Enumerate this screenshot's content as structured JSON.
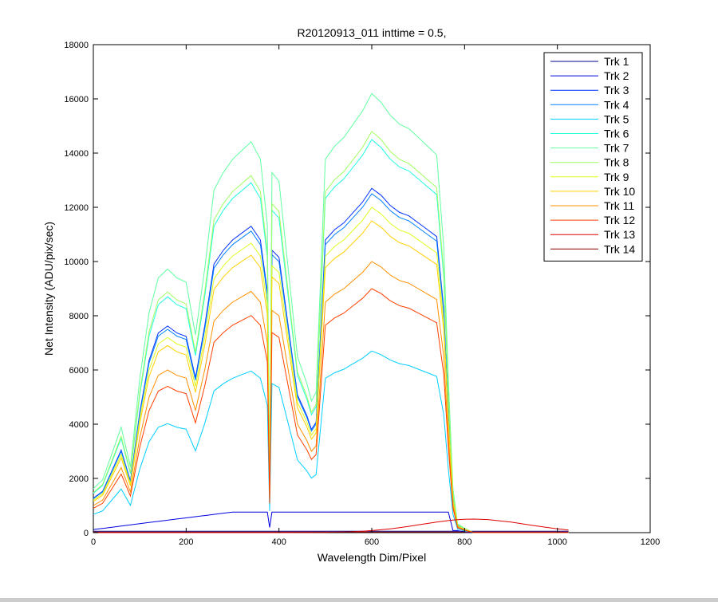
{
  "chart_data": {
    "type": "line",
    "title": "R20120913_011 inttime = 0.5,",
    "xlabel": "Wavelength Dim/Pixel",
    "ylabel": "Net Intensity (ADU/pix/sec)",
    "xlim": [
      0,
      1200
    ],
    "ylim": [
      0,
      18000
    ],
    "xticks": [
      0,
      200,
      400,
      600,
      800,
      1000,
      1200
    ],
    "yticks": [
      0,
      2000,
      4000,
      6000,
      8000,
      10000,
      12000,
      14000,
      16000,
      18000
    ],
    "grid": false,
    "legend_position": "top-right",
    "peak_x": [
      0,
      20,
      40,
      60,
      80,
      100,
      120,
      140,
      160,
      180,
      200,
      220,
      240,
      260,
      280,
      300,
      320,
      340,
      360,
      375,
      380,
      385,
      400,
      420,
      440,
      460,
      470,
      480,
      500,
      520,
      540,
      560,
      580,
      600,
      620,
      640,
      660,
      680,
      700,
      720,
      740,
      755,
      765,
      775,
      785,
      800,
      820,
      850,
      900,
      950,
      1000,
      1024
    ],
    "series": [
      {
        "name": "Trk 1",
        "color": "#00008f",
        "peak": 0,
        "shape": "const",
        "level": 50
      },
      {
        "name": "Trk 2",
        "color": "#0000df",
        "peak": 760,
        "shape": "low",
        "level": 0
      },
      {
        "name": "Trk 3",
        "color": "#0030ff",
        "peak": 12700,
        "shape": "spectrum",
        "level": 0
      },
      {
        "name": "Trk 4",
        "color": "#0080ff",
        "peak": 12500,
        "shape": "spectrum",
        "level": 0
      },
      {
        "name": "Trk 5",
        "color": "#00cfff",
        "peak": 6700,
        "shape": "spectrum",
        "level": 0
      },
      {
        "name": "Trk 6",
        "color": "#20ffdf",
        "peak": 14500,
        "shape": "spectrum",
        "level": 0
      },
      {
        "name": "Trk 7",
        "color": "#60ffa0",
        "peak": 16200,
        "shape": "spectrum",
        "level": 0
      },
      {
        "name": "Trk 8",
        "color": "#a0ff60",
        "peak": 14800,
        "shape": "spectrum",
        "level": 0
      },
      {
        "name": "Trk 9",
        "color": "#dfff20",
        "peak": 12000,
        "shape": "spectrum",
        "level": 0
      },
      {
        "name": "Trk 10",
        "color": "#ffd000",
        "peak": 11500,
        "shape": "spectrum",
        "level": 0
      },
      {
        "name": "Trk 11",
        "color": "#ff9000",
        "peak": 10000,
        "shape": "spectrum",
        "level": 0
      },
      {
        "name": "Trk 12",
        "color": "#ff4000",
        "peak": 9000,
        "shape": "spectrum",
        "level": 0
      },
      {
        "name": "Trk 13",
        "color": "#df0000",
        "peak": 500,
        "shape": "bump",
        "level": 0
      },
      {
        "name": "Trk 14",
        "color": "#8f0000",
        "peak": 0,
        "shape": "const",
        "level": 20
      }
    ],
    "profile": [
      0.1,
      0.12,
      0.18,
      0.24,
      0.15,
      0.35,
      0.5,
      0.58,
      0.6,
      0.58,
      0.57,
      0.45,
      0.6,
      0.78,
      0.82,
      0.85,
      0.87,
      0.89,
      0.85,
      0.7,
      0.12,
      0.82,
      0.8,
      0.6,
      0.4,
      0.34,
      0.3,
      0.32,
      0.85,
      0.88,
      0.9,
      0.93,
      0.96,
      1.0,
      0.98,
      0.95,
      0.93,
      0.92,
      0.9,
      0.88,
      0.86,
      0.65,
      0.35,
      0.1,
      0.02,
      0.01,
      0.0,
      0.0,
      0.0,
      0.0,
      0.0,
      0.0
    ]
  }
}
